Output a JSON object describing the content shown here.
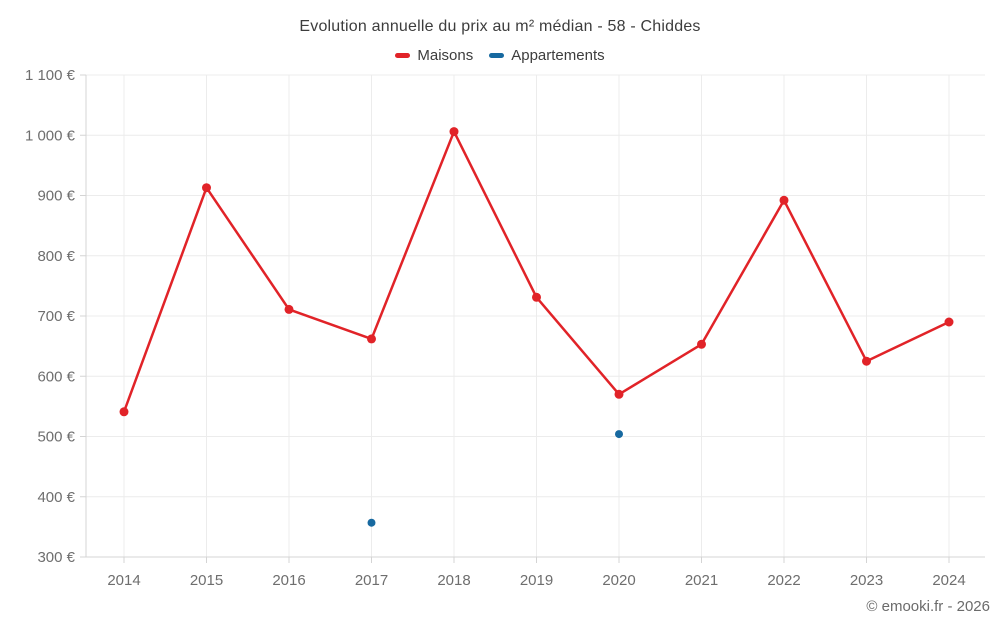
{
  "header": {
    "title": "Evolution annuelle du prix au m² médian - 58 - Chiddes"
  },
  "legend": [
    {
      "label": "Maisons",
      "color": "#e12328"
    },
    {
      "label": "Appartements",
      "color": "#1769a0"
    }
  ],
  "footer": {
    "copyright": "© emooki.fr - 2026"
  },
  "colors": {
    "maisons": "#e12328",
    "appartements": "#1769a0",
    "gridline": "#ececec",
    "axis": "#d4d4d4",
    "tick": "#d4d4d4",
    "axis_text": "#6e6e6e"
  },
  "chart_data": {
    "type": "line",
    "title": "Evolution annuelle du prix au m² médian - 58 - Chiddes",
    "categories": [
      "2014",
      "2015",
      "2016",
      "2017",
      "2018",
      "2019",
      "2020",
      "2021",
      "2022",
      "2023",
      "2024"
    ],
    "series": [
      {
        "name": "Maisons",
        "color": "#e12328",
        "line": true,
        "marker": "circle",
        "values": [
          541,
          913,
          711,
          662,
          1006,
          731,
          570,
          653,
          892,
          625,
          690
        ]
      },
      {
        "name": "Appartements",
        "color": "#1769a0",
        "line": false,
        "marker": "circle",
        "values": [
          null,
          null,
          null,
          357,
          null,
          null,
          504,
          null,
          null,
          null,
          null
        ]
      }
    ],
    "xlabel": "",
    "ylabel": "",
    "ylim": [
      300,
      1100
    ],
    "yticks": [
      300,
      400,
      500,
      600,
      700,
      800,
      900,
      1000,
      1100
    ],
    "ytick_labels": [
      "300 €",
      "400 €",
      "500 €",
      "600 €",
      "700 €",
      "800 €",
      "900 €",
      "1 000 €",
      "1 100 €"
    ],
    "grid": true,
    "legend_position": "top",
    "unit": "€"
  }
}
